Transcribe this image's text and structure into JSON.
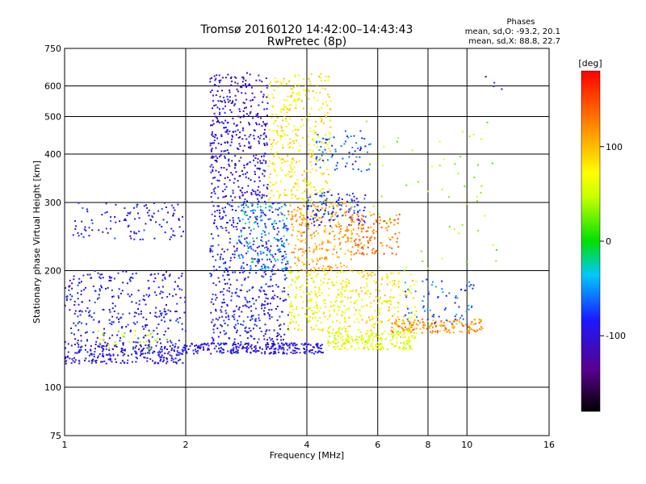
{
  "chart_data": {
    "type": "scatter",
    "title": "Tromsø 20160120 14:42:00–14:43:43",
    "subtitle": "RwPretec (8p)",
    "xlabel": "Frequency [MHz]",
    "ylabel": "Stationary phase Virtual Height [km]",
    "x_scale": "log",
    "y_scale": "log",
    "xlim": [
      1,
      16
    ],
    "ylim": [
      75,
      750
    ],
    "x_ticks": [
      "1",
      "2",
      "4",
      "6",
      "8",
      "10",
      "16"
    ],
    "x_tick_values": [
      1,
      2,
      4,
      6,
      8,
      10,
      16
    ],
    "y_ticks": [
      "75",
      "100",
      "200",
      "300",
      "400",
      "500",
      "600",
      "750"
    ],
    "y_tick_values": [
      75,
      100,
      200,
      300,
      400,
      500,
      600,
      750
    ],
    "grid": true,
    "stats": {
      "heading": "Phases",
      "line1": "mean, sd,O:  -93.2, 20.1",
      "line2": "mean, sd,X:   88.8, 22.7"
    },
    "colorbar": {
      "label": "[deg]",
      "range": [
        -180,
        180
      ],
      "ticks": [
        "100",
        "0",
        "-100"
      ],
      "tick_values": [
        100,
        0,
        -100
      ]
    },
    "clusters": [
      {
        "f": [
          1.0,
          2.0
        ],
        "h": [
          115,
          130
        ],
        "phase": -95,
        "n": 260
      },
      {
        "f": [
          1.0,
          2.0
        ],
        "h": [
          130,
          200
        ],
        "phase": -92,
        "n": 300
      },
      {
        "f": [
          1.05,
          2.0
        ],
        "h": [
          240,
          300
        ],
        "phase": -90,
        "n": 110
      },
      {
        "f": [
          1.2,
          1.8
        ],
        "h": [
          125,
          140
        ],
        "phase": 40,
        "n": 35
      },
      {
        "f": [
          2.0,
          4.4
        ],
        "h": [
          122,
          130
        ],
        "phase": -95,
        "n": 260
      },
      {
        "f": [
          2.3,
          3.6
        ],
        "h": [
          130,
          300
        ],
        "phase": -90,
        "n": 520
      },
      {
        "f": [
          2.3,
          3.2
        ],
        "h": [
          300,
          650
        ],
        "phase": -100,
        "n": 420
      },
      {
        "f": [
          2.7,
          3.6
        ],
        "h": [
          200,
          300
        ],
        "phase": -40,
        "n": 120
      },
      {
        "f": [
          3.2,
          4.6
        ],
        "h": [
          300,
          650
        ],
        "phase": 80,
        "n": 360
      },
      {
        "f": [
          3.6,
          5.2
        ],
        "h": [
          200,
          300
        ],
        "phase": 110,
        "n": 260
      },
      {
        "f": [
          3.6,
          5.0
        ],
        "h": [
          140,
          200
        ],
        "phase": 70,
        "n": 220
      },
      {
        "f": [
          4.0,
          5.6
        ],
        "h": [
          260,
          320
        ],
        "phase": -80,
        "n": 110
      },
      {
        "f": [
          4.2,
          5.8
        ],
        "h": [
          360,
          460
        ],
        "phase": -70,
        "n": 70
      },
      {
        "f": [
          4.5,
          7.5
        ],
        "h": [
          125,
          140
        ],
        "phase": 60,
        "n": 220
      },
      {
        "f": [
          5.0,
          7.5
        ],
        "h": [
          140,
          200
        ],
        "phase": 80,
        "n": 200
      },
      {
        "f": [
          5.0,
          6.8
        ],
        "h": [
          220,
          280
        ],
        "phase": 130,
        "n": 130
      },
      {
        "f": [
          6.5,
          11.0
        ],
        "h": [
          138,
          150
        ],
        "phase": 120,
        "n": 140
      },
      {
        "f": [
          7.0,
          10.5
        ],
        "h": [
          145,
          190
        ],
        "phase": -60,
        "n": 70
      },
      {
        "f": [
          5.5,
          12.0
        ],
        "h": [
          200,
          500
        ],
        "phase": 40,
        "n": 60
      },
      {
        "f": [
          10.0,
          12.5
        ],
        "h": [
          580,
          640
        ],
        "phase": -100,
        "n": 4
      }
    ]
  }
}
